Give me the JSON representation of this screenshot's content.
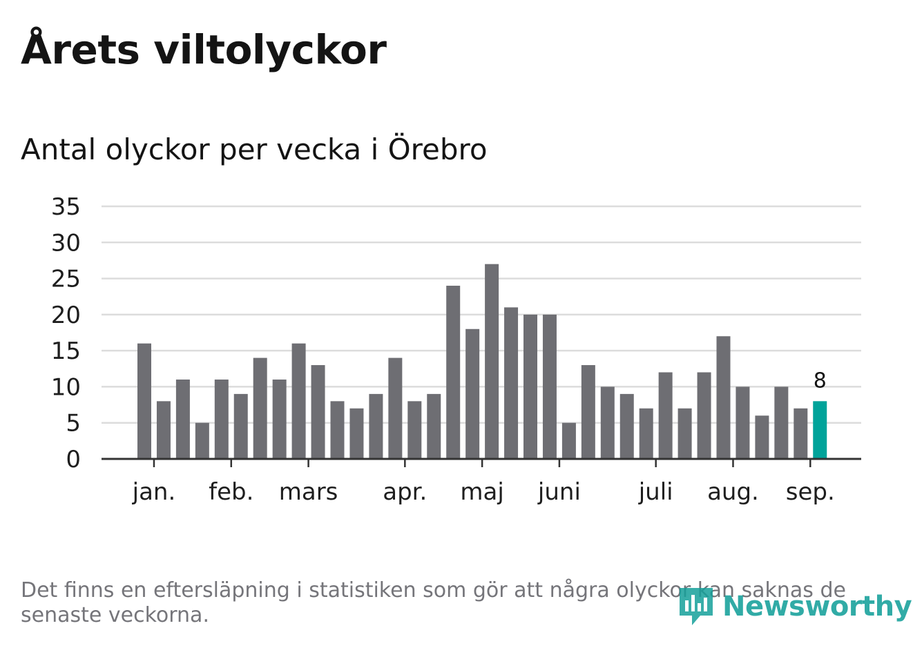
{
  "title": "Årets viltolyckor",
  "subtitle": "Antal olyckor per vecka i Örebro",
  "footnote": "Det finns en eftersläpning i statistiken som gör att några olyckor kan saknas de senaste veckorna.",
  "brand": {
    "name": "Newsworthy",
    "color": "#15a09a"
  },
  "colors": {
    "bar": "#6e6e73",
    "highlight": "#00a39a",
    "grid": "#dcdcdc",
    "axis": "#333333",
    "text": "#1e1e1e"
  },
  "chart_data": {
    "type": "bar",
    "values": [
      16,
      8,
      11,
      5,
      11,
      9,
      14,
      11,
      16,
      13,
      8,
      7,
      9,
      14,
      8,
      9,
      24,
      18,
      27,
      21,
      20,
      20,
      5,
      13,
      10,
      9,
      7,
      12,
      7,
      12,
      17,
      10,
      6,
      10,
      7,
      8
    ],
    "highlight_last": true,
    "highlight_label": "8",
    "yticks": [
      "0",
      "5",
      "10",
      "15",
      "20",
      "25",
      "30",
      "35"
    ],
    "ylim": [
      0,
      35
    ],
    "month_labels": [
      {
        "label": "jan.",
        "bar_index": 0.5
      },
      {
        "label": "feb.",
        "bar_index": 4.5
      },
      {
        "label": "mars",
        "bar_index": 8.5
      },
      {
        "label": "apr.",
        "bar_index": 13.5
      },
      {
        "label": "maj",
        "bar_index": 17.5
      },
      {
        "label": "juni",
        "bar_index": 21.5
      },
      {
        "label": "juli",
        "bar_index": 26.5
      },
      {
        "label": "aug.",
        "bar_index": 30.5
      },
      {
        "label": "sep.",
        "bar_index": 34.5
      }
    ],
    "grid": true
  }
}
